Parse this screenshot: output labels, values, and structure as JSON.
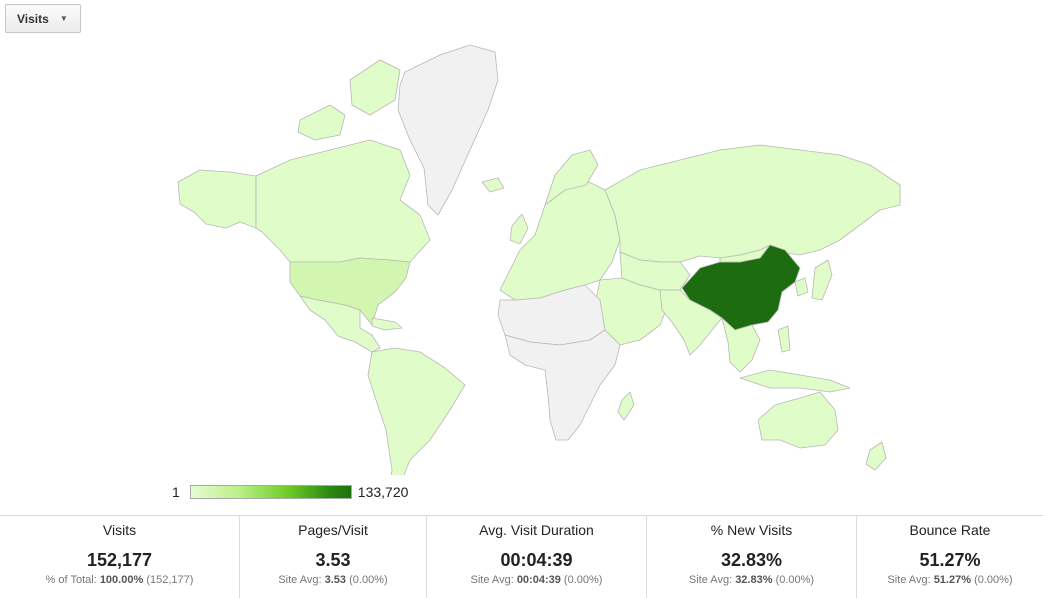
{
  "dropdown": {
    "label": "Visits"
  },
  "map": {
    "colors": {
      "none": "#f1f1f1",
      "low": "#e0fcc8",
      "us": "#d2f6b0",
      "top": "#1d6d10",
      "water": "#ffffff"
    },
    "top_region_value": 133720
  },
  "legend": {
    "min": "1",
    "max": "133,720"
  },
  "scorecards": [
    {
      "label": "Visits",
      "value": "152,177",
      "sub_prefix": "% of Total:",
      "sub_bold": "100.00%",
      "sub_suffix": "(152,177)"
    },
    {
      "label": "Pages/Visit",
      "value": "3.53",
      "sub_prefix": "Site Avg:",
      "sub_bold": "3.53",
      "sub_suffix": "(0.00%)"
    },
    {
      "label": "Avg. Visit Duration",
      "value": "00:04:39",
      "sub_prefix": "Site Avg:",
      "sub_bold": "00:04:39",
      "sub_suffix": "(0.00%)"
    },
    {
      "label": "% New Visits",
      "value": "32.83%",
      "sub_prefix": "Site Avg:",
      "sub_bold": "32.83%",
      "sub_suffix": "(0.00%)"
    },
    {
      "label": "Bounce Rate",
      "value": "51.27%",
      "sub_prefix": "Site Avg:",
      "sub_bold": "51.27%",
      "sub_suffix": "(0.00%)"
    }
  ]
}
